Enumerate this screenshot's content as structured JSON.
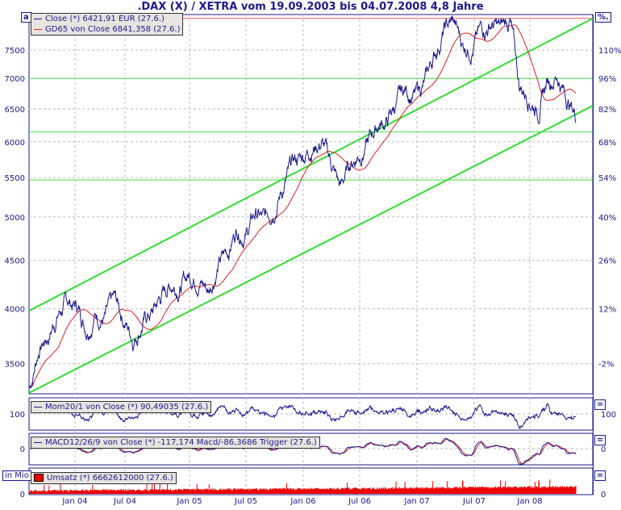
{
  "title": ".DAX (X) / XETRA vom 19.09.2003 bis 04.07.2008 4,8 Jahre",
  "buttons": {
    "main_corner": "a",
    "percent": "%.",
    "panel_toggle": "=",
    "volume_unit": "in Mio"
  },
  "legends": {
    "close": "Close (*) 6421,91 EUR (27.6.)",
    "gd65": "GD65 von Close 6841,358 (27.6.)",
    "mom": "Mom20/1 von Close (*) 90,49035 (27.6.)",
    "macd": "MACD12/26/9 von Close (*) -117,174 Macd/-86,3686 Trigger (27.6.)",
    "umsatz": "Umsatz (*) 6662612000 (27.6.)"
  },
  "colors": {
    "close": "#1a1a8c",
    "gd65": "#e02020",
    "channel": "#33dd33",
    "volume": "#ee0000"
  },
  "chart_data": {
    "type": "line",
    "y_scale": "log",
    "ylim": [
      3255,
      8110
    ],
    "y_ticks": [
      "7500",
      "7000",
      "6500",
      "6000",
      "5500",
      "5000",
      "4500",
      "4000",
      "3500"
    ],
    "y_ticks_right": [
      "110%",
      "96%",
      "82%",
      "68%",
      "54%",
      "40%",
      "26%",
      "12%",
      "-2%"
    ],
    "x_ticks": [
      "Jan 04",
      "Jul 04",
      "Jan 05",
      "Jul 05",
      "Jan 06",
      "Jul 06",
      "Jan 07",
      "Jul 07",
      "Jan 08"
    ],
    "grid": true,
    "legend": "top-left",
    "x": [
      "2003-09",
      "2003-10",
      "2003-11",
      "2003-12",
      "2004-01",
      "2004-02",
      "2004-03",
      "2004-04",
      "2004-05",
      "2004-06",
      "2004-07",
      "2004-08",
      "2004-09",
      "2004-10",
      "2004-11",
      "2004-12",
      "2005-01",
      "2005-02",
      "2005-03",
      "2005-04",
      "2005-05",
      "2005-06",
      "2005-07",
      "2005-08",
      "2005-09",
      "2005-10",
      "2005-11",
      "2005-12",
      "2006-01",
      "2006-02",
      "2006-03",
      "2006-04",
      "2006-05",
      "2006-06",
      "2006-07",
      "2006-08",
      "2006-09",
      "2006-10",
      "2006-11",
      "2006-12",
      "2007-01",
      "2007-02",
      "2007-03",
      "2007-04",
      "2007-05",
      "2007-06",
      "2007-07",
      "2007-08",
      "2007-09",
      "2007-10",
      "2007-11",
      "2007-12",
      "2008-01",
      "2008-02",
      "2008-03",
      "2008-04",
      "2008-05",
      "2008-06",
      "2008-07"
    ],
    "series": [
      {
        "name": "Close (*)",
        "values": [
          3300,
          3650,
          3750,
          3965,
          4060,
          4020,
          3850,
          3985,
          3920,
          4050,
          3895,
          3740,
          3893,
          3960,
          4126,
          4256,
          4254,
          4350,
          4348,
          4185,
          4460,
          4586,
          4886,
          4830,
          5044,
          4929,
          5193,
          5408,
          5674,
          5796,
          5970,
          6009,
          5692,
          5350,
          5681,
          5859,
          6004,
          6268,
          6309,
          6597,
          6789,
          6715,
          6917,
          7409,
          7883,
          8007,
          7584,
          7638,
          7862,
          8019,
          7871,
          8067,
          6851,
          6748,
          6535,
          6949,
          7097,
          6700,
          6421
        ]
      }
    ],
    "horizontal_lines": [
      8100,
      7000,
      6150,
      5470
    ],
    "channel_upper": {
      "start": 3980,
      "end": 8100
    },
    "channel_lower": {
      "start": 3260,
      "end": 6550
    }
  }
}
